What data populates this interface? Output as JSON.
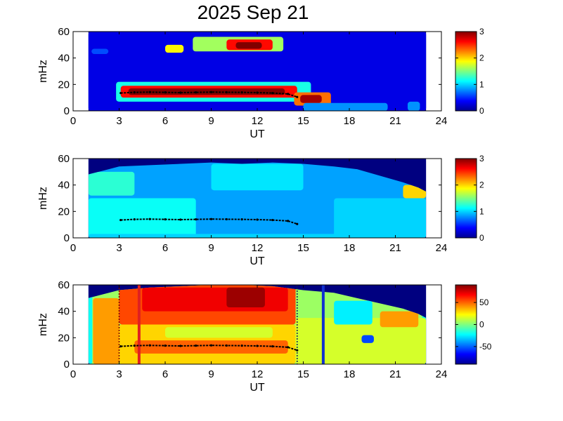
{
  "figure": {
    "title": "2025 Sep 21"
  },
  "chart_data": [
    {
      "type": "heatmap",
      "xlabel": "UT",
      "ylabel": "mHz",
      "xlim": [
        0,
        24
      ],
      "ylim": [
        0,
        60
      ],
      "xticks": [
        0,
        3,
        6,
        9,
        12,
        15,
        18,
        21,
        24
      ],
      "yticks": [
        0,
        20,
        40,
        60
      ],
      "colorbar": {
        "range": [
          0,
          3
        ],
        "ticks": [
          0,
          1,
          2,
          3
        ]
      },
      "data_extent_ut": [
        1.0,
        23.0
      ],
      "background_value": 0.0,
      "regions": [
        {
          "ut": [
            1.0,
            23.0
          ],
          "mhz": [
            0,
            60
          ],
          "value": 0.3
        },
        {
          "ut": [
            1.2,
            2.3
          ],
          "mhz": [
            43,
            47
          ],
          "value": 0.6
        },
        {
          "ut": [
            2.8,
            15.5
          ],
          "mhz": [
            7,
            22
          ],
          "value": 1.2
        },
        {
          "ut": [
            3.1,
            14.6
          ],
          "mhz": [
            10,
            19
          ],
          "value": 2.6
        },
        {
          "ut": [
            3.6,
            13.8
          ],
          "mhz": [
            12,
            17
          ],
          "value": 3.0
        },
        {
          "ut": [
            14.4,
            16.8
          ],
          "mhz": [
            4,
            14
          ],
          "value": 2.3
        },
        {
          "ut": [
            14.8,
            16.2
          ],
          "mhz": [
            6,
            12
          ],
          "value": 2.9
        },
        {
          "ut": [
            6.0,
            7.2
          ],
          "mhz": [
            44,
            50
          ],
          "value": 1.9
        },
        {
          "ut": [
            7.8,
            13.7
          ],
          "mhz": [
            45,
            56
          ],
          "value": 1.6
        },
        {
          "ut": [
            10.0,
            13.0
          ],
          "mhz": [
            46,
            54
          ],
          "value": 2.6
        },
        {
          "ut": [
            10.6,
            12.3
          ],
          "mhz": [
            47,
            52
          ],
          "value": 3.0
        },
        {
          "ut": [
            15.0,
            20.5
          ],
          "mhz": [
            0,
            6
          ],
          "value": 0.8
        },
        {
          "ut": [
            21.8,
            22.6
          ],
          "mhz": [
            0,
            7
          ],
          "value": 0.8
        }
      ],
      "trace": {
        "ut": [
          3.1,
          4.0,
          5.0,
          6.0,
          7.0,
          8.0,
          9.0,
          10.0,
          11.0,
          12.0,
          13.0,
          14.0,
          14.6
        ],
        "mhz": [
          13.5,
          14.0,
          14.2,
          14.0,
          13.8,
          14.0,
          14.2,
          14.1,
          14.0,
          13.8,
          13.5,
          12.8,
          10.5
        ]
      }
    },
    {
      "type": "heatmap",
      "xlabel": "UT",
      "ylabel": "mHz",
      "xlim": [
        0,
        24
      ],
      "ylim": [
        0,
        60
      ],
      "xticks": [
        0,
        3,
        6,
        9,
        12,
        15,
        18,
        21,
        24
      ],
      "yticks": [
        0,
        20,
        40,
        60
      ],
      "colorbar": {
        "range": [
          0,
          3
        ],
        "ticks": [
          0,
          1,
          2,
          3
        ]
      },
      "data_extent_ut": [
        1.0,
        23.0
      ],
      "background_value": 0.0,
      "upper_edge": {
        "ut": [
          1.0,
          2.0,
          3.0,
          5.0,
          7.0,
          9.0,
          11.0,
          13.0,
          15.0,
          17.0,
          18.5,
          20.0,
          21.5,
          22.5,
          23.0
        ],
        "mhz": [
          48,
          51,
          54,
          55,
          56,
          57,
          56,
          57,
          56,
          54,
          52,
          47,
          42,
          38,
          35
        ]
      },
      "regions": [
        {
          "ut": [
            1.0,
            23.0
          ],
          "mhz": [
            0,
            60
          ],
          "value": 0.85
        },
        {
          "ut": [
            1.0,
            4.0
          ],
          "mhz": [
            32,
            50
          ],
          "value": 1.25
        },
        {
          "ut": [
            1.0,
            8.0
          ],
          "mhz": [
            0,
            30
          ],
          "value": 1.15
        },
        {
          "ut": [
            9.0,
            15.0
          ],
          "mhz": [
            36,
            56
          ],
          "value": 1.05
        },
        {
          "ut": [
            17.0,
            23.0
          ],
          "mhz": [
            0,
            30
          ],
          "value": 1.0
        },
        {
          "ut": [
            21.5,
            23.0
          ],
          "mhz": [
            30,
            40
          ],
          "value": 2.0
        },
        {
          "ut": [
            1.0,
            23.0
          ],
          "mhz": [
            0,
            3
          ],
          "value": 1.0
        }
      ],
      "trace": {
        "ut": [
          3.1,
          4.0,
          5.0,
          6.0,
          7.0,
          8.0,
          9.0,
          10.0,
          11.0,
          12.0,
          13.0,
          14.0,
          14.6
        ],
        "mhz": [
          13.5,
          14.0,
          14.2,
          14.0,
          13.8,
          14.0,
          14.2,
          14.1,
          14.0,
          13.8,
          13.5,
          12.8,
          10.5
        ]
      }
    },
    {
      "type": "heatmap",
      "xlabel": "UT",
      "ylabel": "mHz",
      "xlim": [
        0,
        24
      ],
      "ylim": [
        0,
        60
      ],
      "xticks": [
        0,
        3,
        6,
        9,
        12,
        15,
        18,
        21,
        24
      ],
      "yticks": [
        0,
        20,
        40,
        60
      ],
      "colorbar": {
        "range": [
          -90,
          90
        ],
        "ticks": [
          50,
          0,
          -50
        ]
      },
      "data_extent_ut": [
        1.0,
        23.0
      ],
      "background_value": -90,
      "upper_edge": {
        "ut": [
          1.0,
          2.0,
          3.0,
          5.0,
          7.0,
          9.0,
          11.0,
          13.0,
          15.0,
          17.0,
          18.5,
          20.0,
          21.5,
          22.5,
          23.0
        ],
        "mhz": [
          50,
          53,
          56,
          58,
          59,
          60,
          60,
          59,
          56,
          54,
          50,
          46,
          42,
          38,
          35
        ]
      },
      "regions": [
        {
          "ut": [
            1.0,
            23.0
          ],
          "mhz": [
            0,
            60
          ],
          "value": 5
        },
        {
          "ut": [
            1.0,
            1.25
          ],
          "mhz": [
            0,
            60
          ],
          "value": -20
        },
        {
          "ut": [
            22.75,
            23.0
          ],
          "mhz": [
            0,
            60
          ],
          "value": -20
        },
        {
          "ut": [
            1.3,
            3.0
          ],
          "mhz": [
            0,
            50
          ],
          "value": 40
        },
        {
          "ut": [
            3.0,
            14.5
          ],
          "mhz": [
            30,
            60
          ],
          "value": 55
        },
        {
          "ut": [
            4.5,
            14.0
          ],
          "mhz": [
            40,
            58
          ],
          "value": 70
        },
        {
          "ut": [
            10.0,
            12.5
          ],
          "mhz": [
            43,
            58
          ],
          "value": 85
        },
        {
          "ut": [
            3.0,
            14.5
          ],
          "mhz": [
            0,
            30
          ],
          "value": 30
        },
        {
          "ut": [
            4.0,
            14.0
          ],
          "mhz": [
            8,
            18
          ],
          "value": 50
        },
        {
          "ut": [
            6.0,
            13.0
          ],
          "mhz": [
            20,
            28
          ],
          "value": 15
        },
        {
          "ut": [
            14.5,
            23.0
          ],
          "mhz": [
            0,
            35
          ],
          "value": 15
        },
        {
          "ut": [
            17.0,
            19.5
          ],
          "mhz": [
            30,
            48
          ],
          "value": -25
        },
        {
          "ut": [
            18.8,
            19.6
          ],
          "mhz": [
            16,
            22
          ],
          "value": -55
        },
        {
          "ut": [
            20.0,
            22.5
          ],
          "mhz": [
            28,
            40
          ],
          "value": 40
        }
      ],
      "vertical_lines": [
        {
          "ut": 3.0,
          "style": "dotted",
          "color": "#7a0000"
        },
        {
          "ut": 4.3,
          "style": "solid",
          "color": "#e02020"
        },
        {
          "ut": 14.6,
          "style": "dotted",
          "color": "#1a1a5a"
        },
        {
          "ut": 16.3,
          "style": "solid",
          "color": "#1030d0"
        }
      ],
      "trace": {
        "ut": [
          3.1,
          4.0,
          5.0,
          6.0,
          7.0,
          8.0,
          9.0,
          10.0,
          11.0,
          12.0,
          13.0,
          14.0,
          14.6
        ],
        "mhz": [
          13.5,
          14.0,
          14.2,
          14.0,
          13.8,
          14.0,
          14.2,
          14.1,
          14.0,
          13.8,
          13.5,
          12.8,
          10.5
        ]
      }
    }
  ]
}
